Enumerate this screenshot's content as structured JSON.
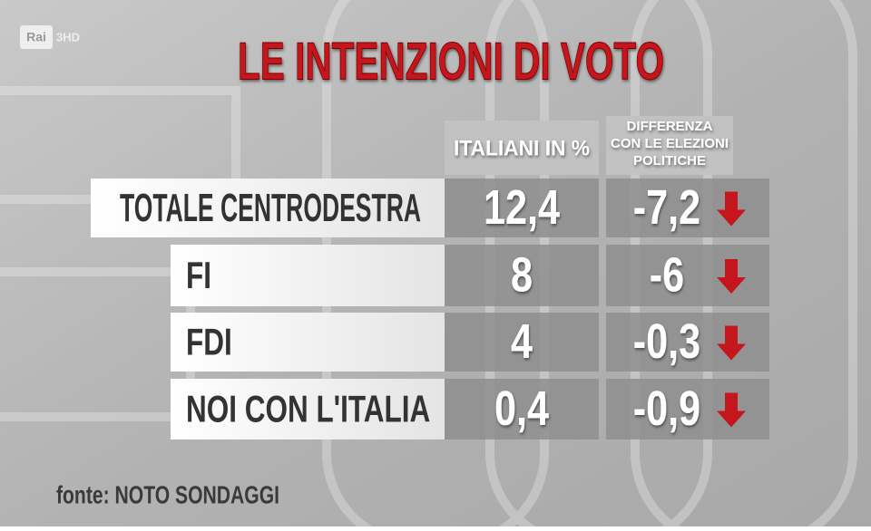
{
  "logo": {
    "brand": "Rai",
    "channel": "3HD"
  },
  "title": "LE INTENZIONI DI VOTO",
  "table": {
    "headers": [
      "ITALIANI IN %",
      [
        "DIFFERENZA",
        "CON LE ELEZIONI",
        "POLITICHE"
      ]
    ],
    "rows": [
      [
        "TOTALE CENTRODESTRA",
        "12,4",
        "-7,2"
      ],
      [
        "FI",
        "8",
        "-6"
      ],
      [
        "FDI",
        "4",
        "-0,3"
      ],
      [
        "NOI CON L'ITALIA",
        "0,4",
        "-0,9"
      ]
    ]
  },
  "source": "fonte: NOTO SONDAGGI"
}
